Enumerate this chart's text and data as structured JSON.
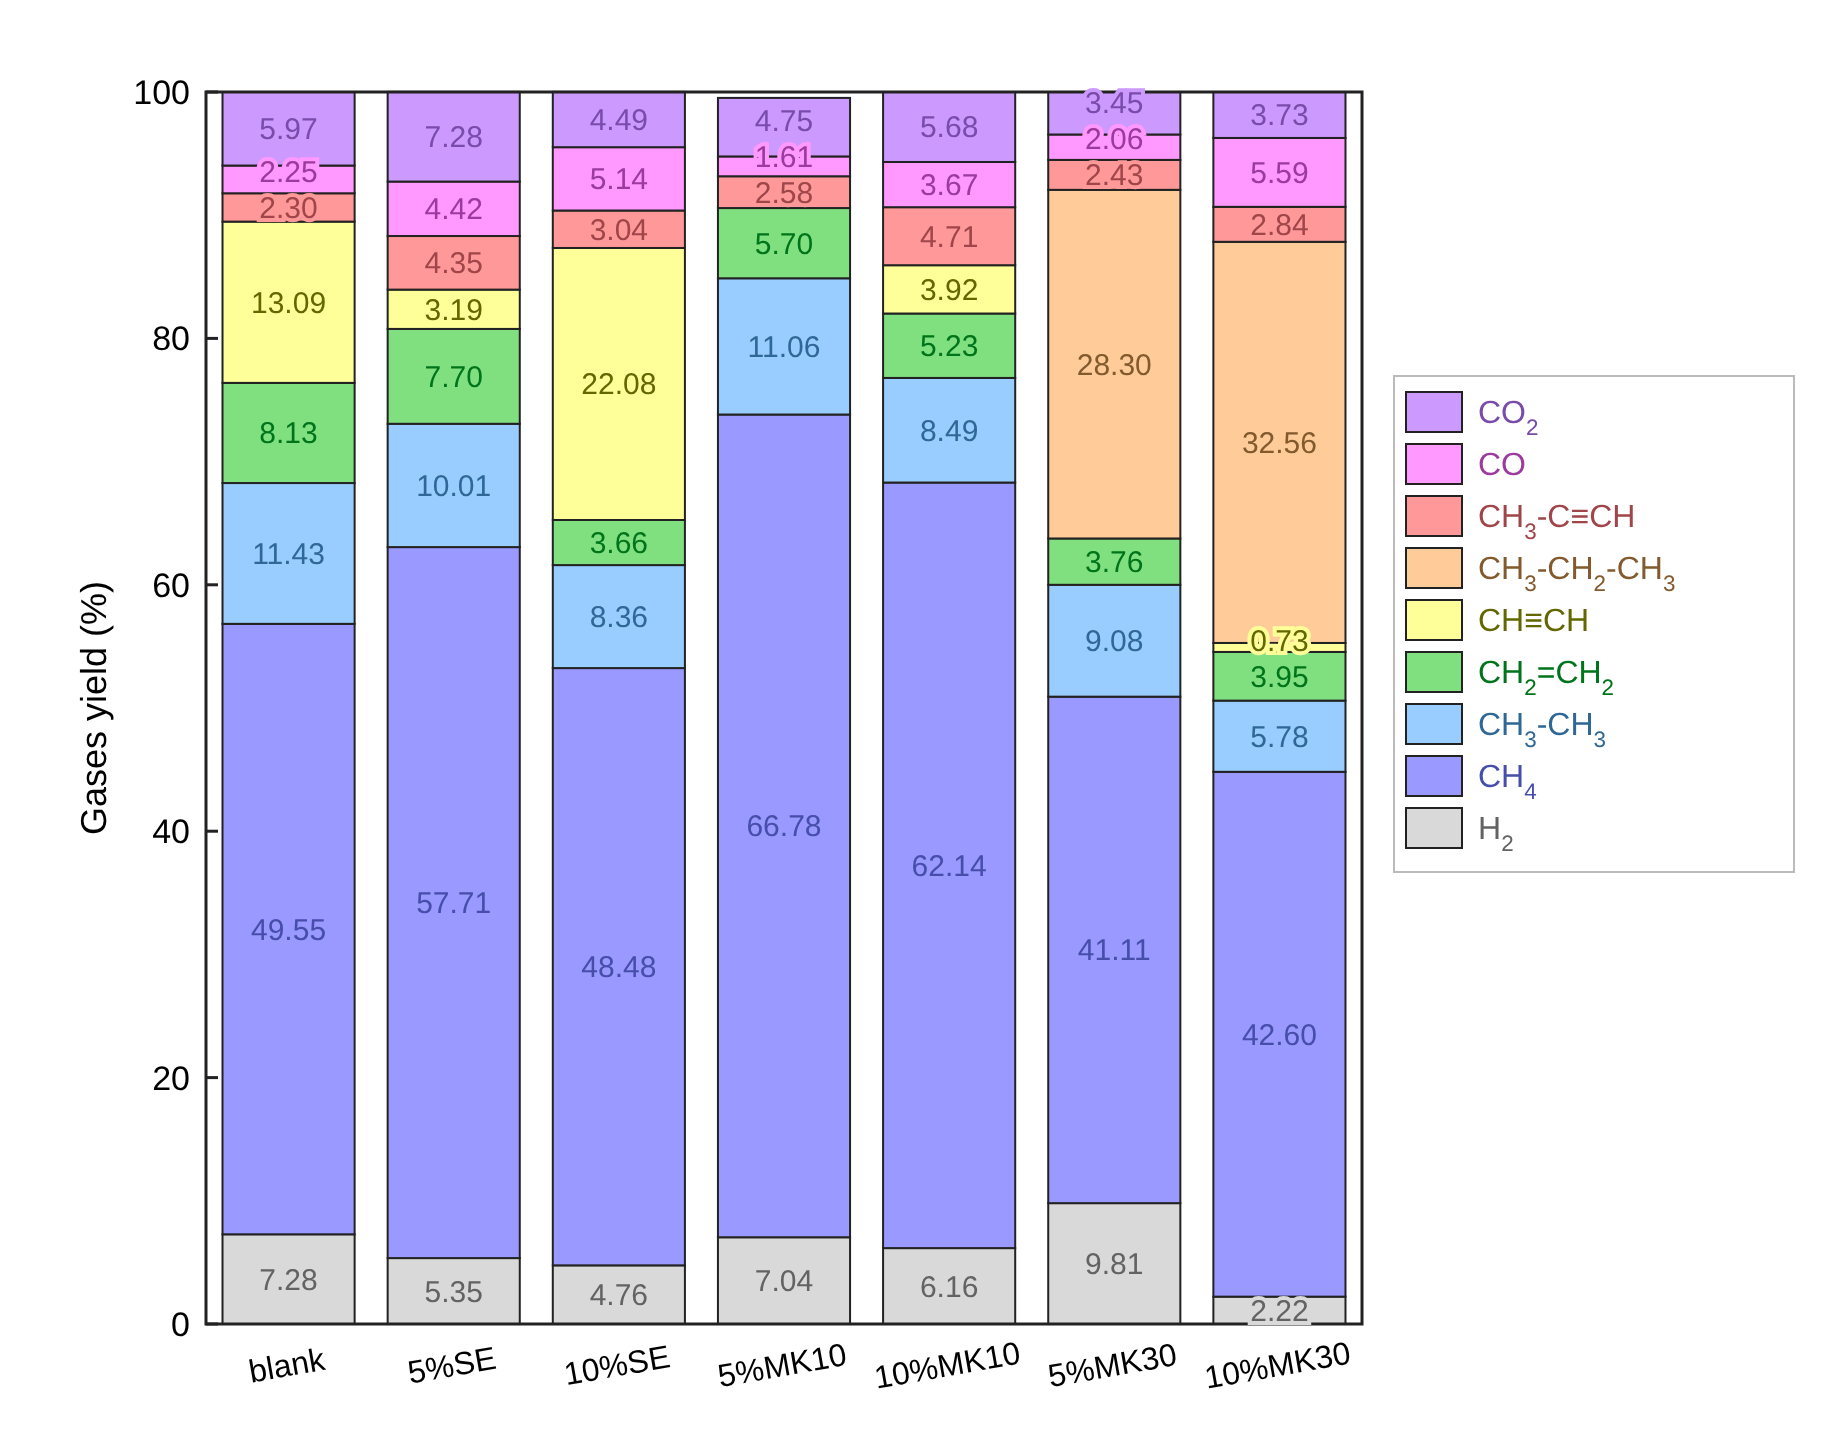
{
  "chart_data": {
    "type": "bar",
    "stacked": true,
    "ylabel": "Gases yield (%)",
    "categories": [
      "blank",
      "5%SE",
      "10%SE",
      "5%MK10",
      "10%MK10",
      "5%MK30",
      "10%MK30"
    ],
    "ylim": [
      0,
      100
    ],
    "yticks": [
      0,
      20,
      40,
      60,
      80,
      100
    ],
    "grid": false,
    "legend": "right",
    "series": [
      {
        "name": "H$_{2}$",
        "color": "#d9d9d9",
        "values": [
          7.28,
          5.35,
          4.76,
          7.04,
          6.16,
          9.81,
          2.22
        ],
        "value_labels": [
          "7.28",
          "5.35",
          "4.76",
          "7.04",
          "6.16",
          "9.81",
          "2.22"
        ]
      },
      {
        "name": "CH$_{4}$",
        "color": "#9999ff",
        "values": [
          49.55,
          57.71,
          48.48,
          66.78,
          62.14,
          41.11,
          42.6
        ],
        "value_labels": [
          "49.55",
          "57.71",
          "48.48",
          "66.78",
          "62.14",
          "41.11",
          "42.60"
        ]
      },
      {
        "name": "CH$_{3}$-CH$_{3}$",
        "color": "#99ccff",
        "values": [
          11.43,
          10.01,
          8.36,
          11.06,
          8.49,
          9.08,
          5.78
        ],
        "value_labels": [
          "11.43",
          "10.01",
          "8.36",
          "11.06",
          "8.49",
          "9.08",
          "5.78"
        ]
      },
      {
        "name": "CH$_{2}$=CH$_{2}$",
        "color": "#80e080",
        "values": [
          8.13,
          7.7,
          3.66,
          5.7,
          5.23,
          3.76,
          3.95
        ],
        "value_labels": [
          "8.13",
          "7.70",
          "3.66",
          "5.70",
          "5.23",
          "3.76",
          "3.95"
        ]
      },
      {
        "name": "CH≡CH",
        "color": "#ffff99",
        "values": [
          13.09,
          3.19,
          22.08,
          null,
          3.92,
          null,
          0.73
        ],
        "value_labels": [
          "13.09",
          "3.19",
          "22.08",
          null,
          "3.92",
          null,
          "0.73"
        ]
      },
      {
        "name": "CH$_{3}$-CH$_{2}$-CH$_{3}$",
        "color": "#ffcc99",
        "values": [
          null,
          null,
          null,
          null,
          null,
          28.3,
          32.56
        ],
        "value_labels": [
          null,
          null,
          null,
          null,
          null,
          "28.30",
          "32.56"
        ]
      },
      {
        "name": "CH$_{3}$-C≡CH",
        "color": "#ff9999",
        "values": [
          2.3,
          4.35,
          3.04,
          2.58,
          4.71,
          2.43,
          2.84
        ],
        "value_labels": [
          "2.30",
          "4.35",
          "3.04",
          "2.58",
          "4.71",
          "2.43",
          "2.84"
        ]
      },
      {
        "name": "CO",
        "color": "#ff99ff",
        "values": [
          2.25,
          4.42,
          5.14,
          1.61,
          3.67,
          2.06,
          5.59
        ],
        "value_labels": [
          "2.25",
          "4.42",
          "5.14",
          "1.61",
          "3.67",
          "2.06",
          "5.59"
        ]
      },
      {
        "name": "CO$_{2}$",
        "color": "#cc99ff",
        "values": [
          5.97,
          7.28,
          4.49,
          4.75,
          5.68,
          3.45,
          3.73
        ],
        "value_labels": [
          "5.97",
          "7.28",
          "4.49",
          "4.75",
          "5.68",
          "3.45",
          "3.73"
        ]
      }
    ]
  }
}
